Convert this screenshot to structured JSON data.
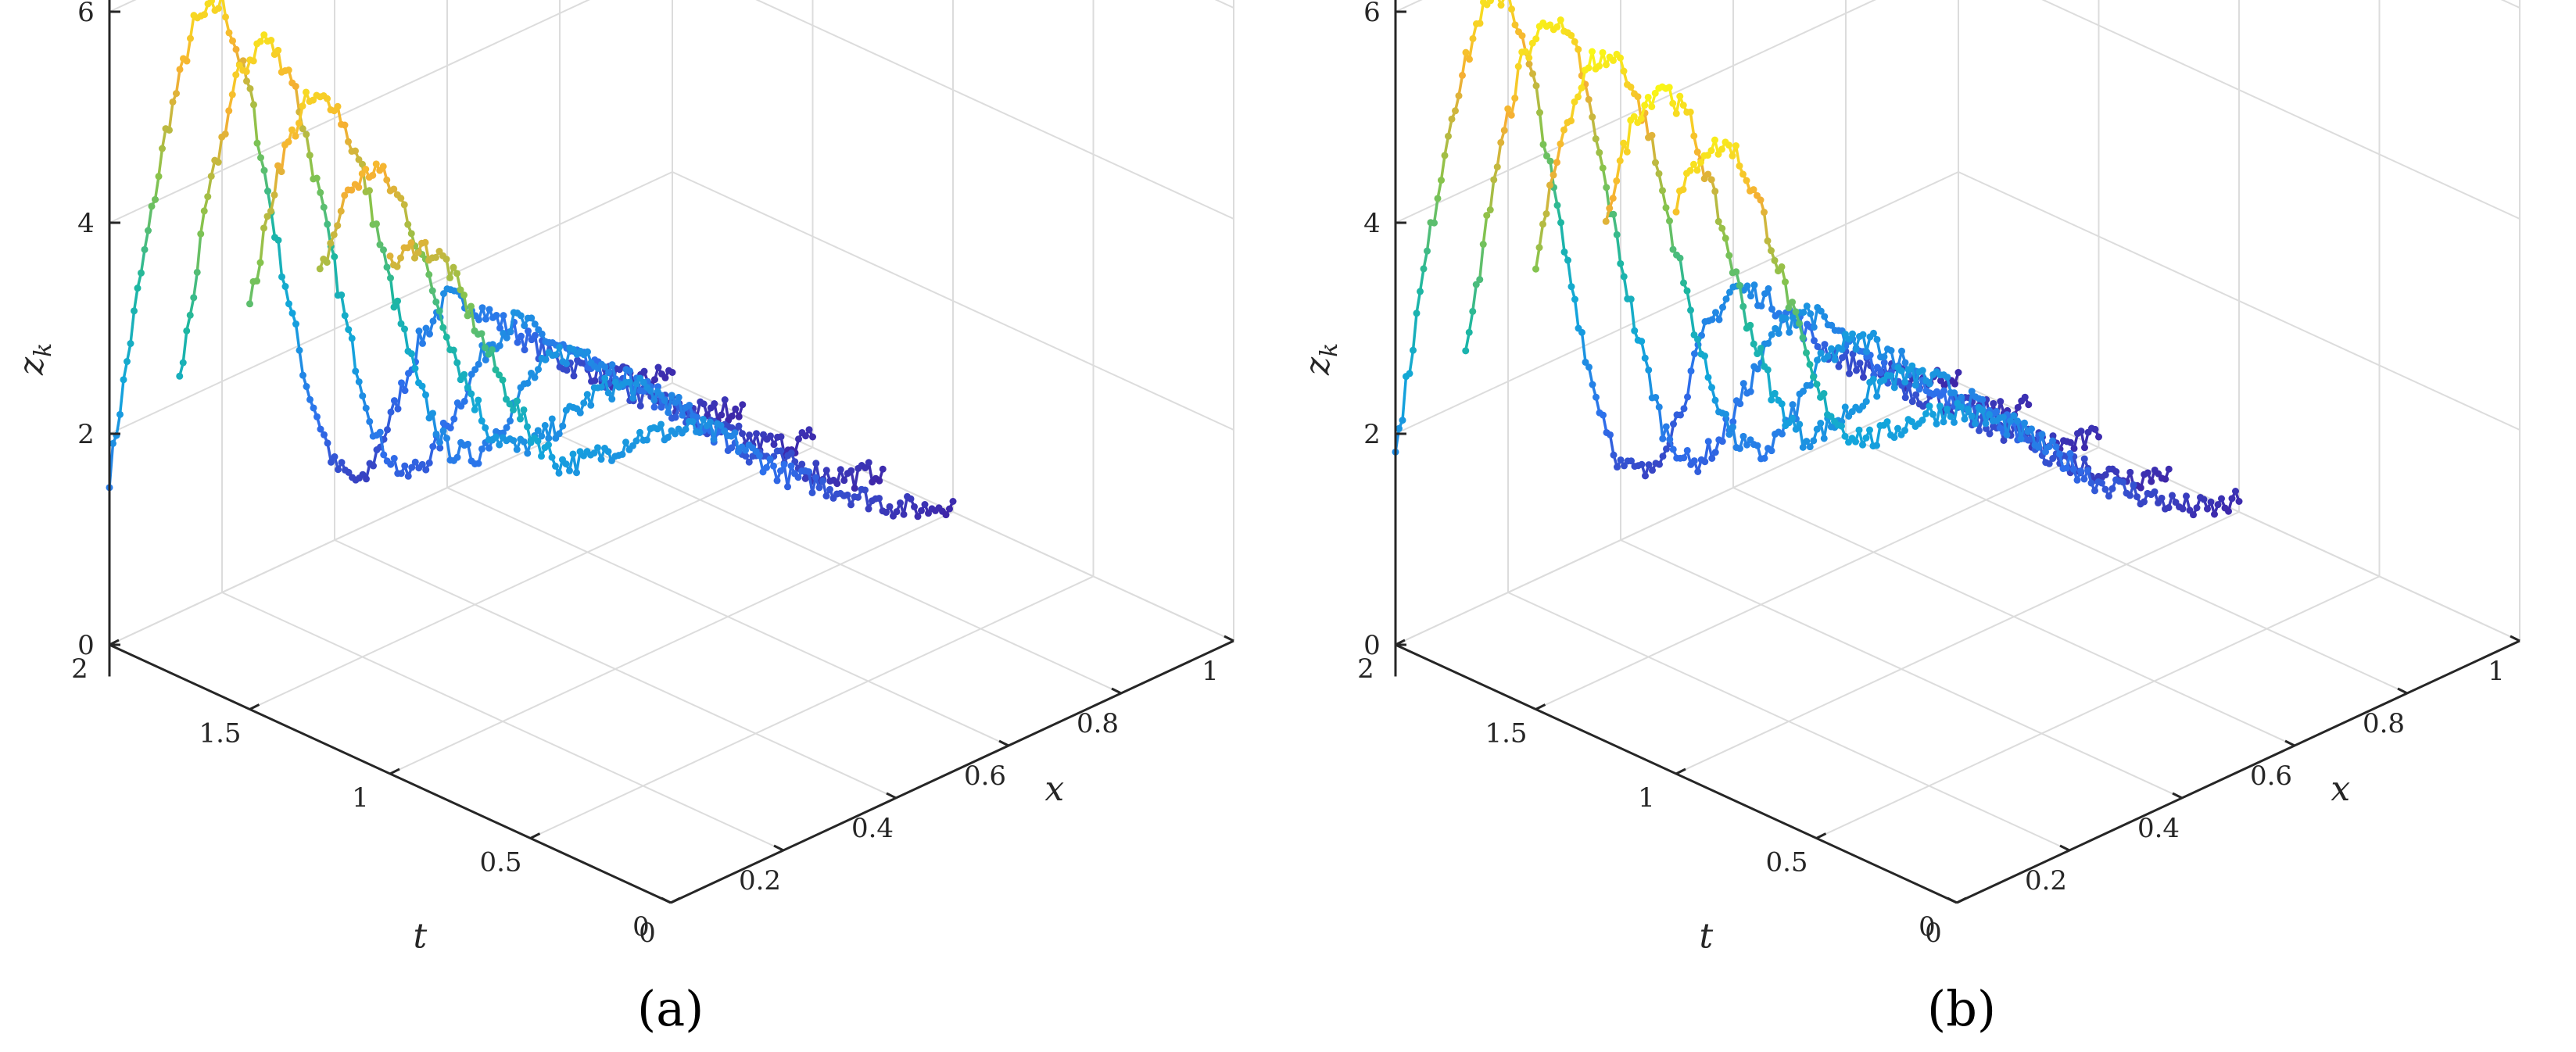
{
  "chart_data": [
    {
      "type": "line3d",
      "panel_label": "(a)",
      "xlabel": "x",
      "ylabel": "t",
      "zlabel": "z_k",
      "xlim": [
        0,
        1
      ],
      "ylim": [
        0,
        2
      ],
      "zlim": [
        0,
        6
      ],
      "x_ticks": [
        "0",
        "0.2",
        "0.4",
        "0.6",
        "0.8",
        "1"
      ],
      "y_ticks": [
        "0",
        "0.5",
        "1",
        "1.5",
        "2"
      ],
      "z_ticks": [
        "0",
        "2",
        "4",
        "6"
      ],
      "grid": true,
      "colormap": "parula",
      "slices": [
        {
          "t": 2.0,
          "x": [
            0,
            0.05,
            0.1,
            0.15,
            0.2,
            0.25,
            0.3,
            0.35,
            0.4,
            0.45,
            0.5,
            0.55,
            0.6,
            0.65,
            0.7,
            0.75,
            0.8,
            0.85,
            0.9,
            0.95,
            1.0
          ],
          "z": [
            1.6,
            3.2,
            4.6,
            5.5,
            5.6,
            4.6,
            3.0,
            1.6,
            0.7,
            0.4,
            0.9,
            1.5,
            1.8,
            1.6,
            1.3,
            1.0,
            0.7,
            0.5,
            0.3,
            0.15,
            0.1
          ]
        },
        {
          "t": 1.75,
          "x": [
            0,
            0.05,
            0.1,
            0.15,
            0.2,
            0.25,
            0.3,
            0.35,
            0.4,
            0.45,
            0.5,
            0.55,
            0.6,
            0.65,
            0.7,
            0.75,
            0.8,
            0.85,
            0.9,
            0.95,
            1.0
          ],
          "z": [
            2.8,
            4.4,
            5.4,
            5.7,
            5.2,
            3.9,
            2.5,
            1.4,
            0.9,
            1.0,
            1.4,
            1.8,
            1.9,
            1.6,
            1.3,
            1.0,
            0.7,
            0.5,
            0.3,
            0.15,
            0.1
          ]
        },
        {
          "t": 1.5,
          "x": [
            0,
            0.05,
            0.1,
            0.15,
            0.2,
            0.25,
            0.3,
            0.35,
            0.4,
            0.45,
            0.5,
            0.55,
            0.6,
            0.65,
            0.7,
            0.75,
            0.8,
            0.85,
            0.9,
            0.95,
            1.0
          ],
          "z": [
            3.8,
            5.0,
            5.5,
            5.4,
            4.6,
            3.4,
            2.3,
            1.6,
            1.4,
            1.6,
            1.9,
            2.0,
            1.9,
            1.6,
            1.3,
            1.0,
            0.7,
            0.5,
            0.3,
            0.15,
            0.1
          ]
        },
        {
          "t": 1.25,
          "x": [
            0,
            0.05,
            0.1,
            0.15,
            0.2,
            0.25,
            0.3,
            0.35,
            0.4,
            0.45,
            0.5,
            0.55,
            0.6,
            0.65,
            0.7,
            0.75,
            0.8,
            0.85,
            0.9,
            0.95,
            1.0
          ],
          "z": [
            4.4,
            5.1,
            5.2,
            4.7,
            3.8,
            2.9,
            2.2,
            1.9,
            1.9,
            2.0,
            2.1,
            2.0,
            1.8,
            1.5,
            1.2,
            0.9,
            0.7,
            0.5,
            0.3,
            0.15,
            0.1
          ]
        },
        {
          "t": 1.0,
          "x": [
            0,
            0.05,
            0.1,
            0.15,
            0.2,
            0.25,
            0.3,
            0.35,
            0.4,
            0.45,
            0.5,
            0.55,
            0.6,
            0.65,
            0.7,
            0.75,
            0.8,
            0.85,
            0.9,
            0.95,
            1.0
          ],
          "z": [
            4.8,
            4.9,
            4.6,
            3.9,
            3.2,
            2.6,
            2.2,
            2.1,
            2.1,
            2.1,
            2.0,
            1.9,
            1.7,
            1.4,
            1.1,
            0.9,
            0.7,
            0.5,
            0.3,
            0.15,
            0.1
          ]
        }
      ]
    },
    {
      "type": "line3d",
      "panel_label": "(b)",
      "xlabel": "x",
      "ylabel": "t",
      "zlabel": "z_k",
      "xlim": [
        0,
        1
      ],
      "ylim": [
        0,
        2
      ],
      "zlim": [
        0,
        6
      ],
      "x_ticks": [
        "0",
        "0.2",
        "0.4",
        "0.6",
        "0.8",
        "1"
      ],
      "y_ticks": [
        "0",
        "0.5",
        "1",
        "1.5",
        "2"
      ],
      "z_ticks": [
        "0",
        "2",
        "4",
        "6"
      ],
      "grid": true,
      "colormap": "parula",
      "slices": [
        {
          "t": 2.0,
          "x": [
            0,
            0.05,
            0.1,
            0.15,
            0.2,
            0.25,
            0.3,
            0.35,
            0.4,
            0.45,
            0.5,
            0.55,
            0.6,
            0.65,
            0.7,
            0.75,
            0.8,
            0.85,
            0.9,
            0.95,
            1.0
          ],
          "z": [
            1.8,
            3.4,
            4.8,
            5.6,
            5.7,
            4.6,
            3.0,
            1.6,
            0.7,
            0.5,
            0.9,
            1.6,
            1.9,
            1.7,
            1.4,
            1.0,
            0.7,
            0.5,
            0.3,
            0.15,
            0.1
          ]
        },
        {
          "t": 1.75,
          "x": [
            0,
            0.05,
            0.1,
            0.15,
            0.2,
            0.25,
            0.3,
            0.35,
            0.4,
            0.45,
            0.5,
            0.55,
            0.6,
            0.65,
            0.7,
            0.75,
            0.8,
            0.85,
            0.9,
            0.95,
            1.0
          ],
          "z": [
            3.0,
            4.6,
            5.6,
            5.9,
            5.4,
            4.0,
            2.6,
            1.5,
            1.0,
            1.1,
            1.5,
            1.9,
            2.0,
            1.7,
            1.3,
            1.0,
            0.7,
            0.5,
            0.3,
            0.15,
            0.1
          ]
        },
        {
          "t": 1.5,
          "x": [
            0,
            0.05,
            0.1,
            0.15,
            0.2,
            0.25,
            0.3,
            0.35,
            0.4,
            0.45,
            0.5,
            0.55,
            0.6,
            0.65,
            0.7,
            0.75,
            0.8,
            0.85,
            0.9,
            0.95,
            1.0
          ],
          "z": [
            4.2,
            5.4,
            5.9,
            5.8,
            5.0,
            3.7,
            2.5,
            1.7,
            1.4,
            1.6,
            2.0,
            2.1,
            2.0,
            1.7,
            1.3,
            1.0,
            0.7,
            0.5,
            0.3,
            0.15,
            0.1
          ]
        },
        {
          "t": 1.25,
          "x": [
            0,
            0.05,
            0.1,
            0.15,
            0.2,
            0.25,
            0.3,
            0.35,
            0.4,
            0.45,
            0.5,
            0.55,
            0.6,
            0.65,
            0.7,
            0.75,
            0.8,
            0.85,
            0.9,
            0.95,
            1.0
          ],
          "z": [
            5.0,
            5.8,
            6.0,
            5.5,
            4.5,
            3.4,
            2.5,
            2.0,
            2.0,
            2.1,
            2.2,
            2.1,
            1.9,
            1.6,
            1.3,
            1.0,
            0.7,
            0.5,
            0.3,
            0.15,
            0.1
          ]
        },
        {
          "t": 1.0,
          "x": [
            0,
            0.05,
            0.1,
            0.15,
            0.2,
            0.25,
            0.3,
            0.35,
            0.4,
            0.45,
            0.5,
            0.55,
            0.6,
            0.65,
            0.7,
            0.75,
            0.8,
            0.85,
            0.9,
            0.95,
            1.0
          ],
          "z": [
            5.4,
            5.8,
            5.7,
            5.0,
            4.0,
            3.0,
            2.5,
            2.3,
            2.3,
            2.3,
            2.2,
            2.0,
            1.8,
            1.5,
            1.2,
            0.9,
            0.7,
            0.5,
            0.3,
            0.15,
            0.1
          ]
        }
      ]
    }
  ]
}
